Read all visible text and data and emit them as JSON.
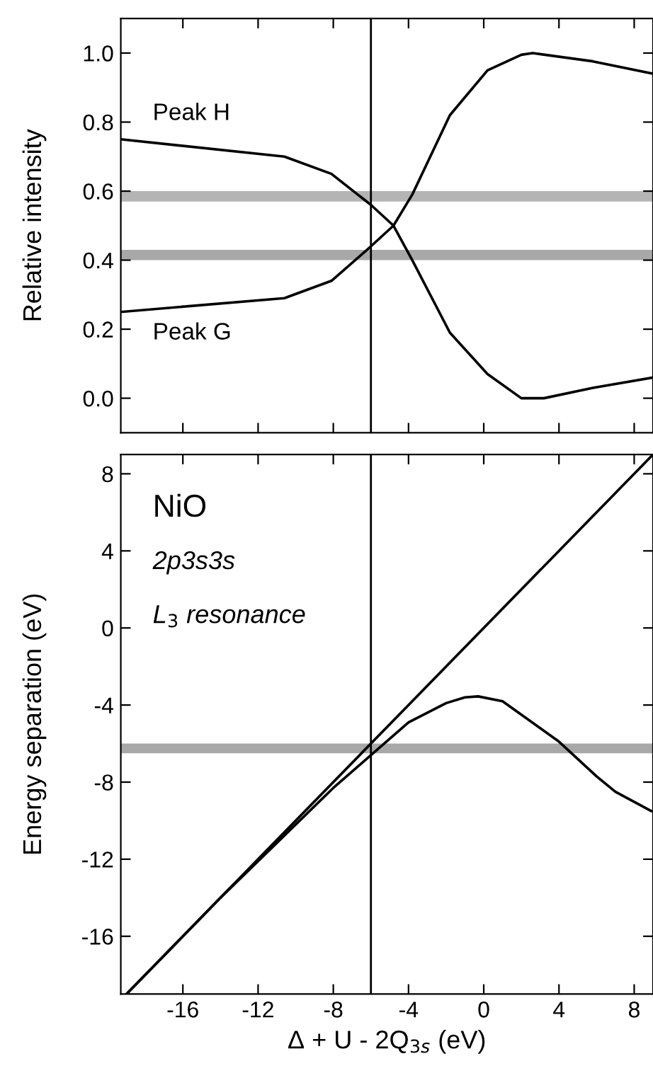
{
  "chart_data": [
    {
      "type": "line",
      "ylabel": "Relative intensity",
      "xlim": [
        -19.3,
        9.0
      ],
      "ylim": [
        -0.1,
        1.1
      ],
      "tick_labels": "y",
      "grid": false,
      "marker": "none",
      "line_style": "solid",
      "xticks": [
        {
          "value": -16,
          "label": null
        },
        {
          "value": -12,
          "label": null
        },
        {
          "value": -8,
          "label": null
        },
        {
          "value": -4,
          "label": null
        },
        {
          "value": 0,
          "label": null
        },
        {
          "value": 4,
          "label": null
        },
        {
          "value": 8,
          "label": null
        }
      ],
      "yticks": [
        {
          "value": 0.0,
          "label": "0.0"
        },
        {
          "value": 0.2,
          "label": "0.2"
        },
        {
          "value": 0.4,
          "label": "0.4"
        },
        {
          "value": 0.6,
          "label": "0.6"
        },
        {
          "value": 0.8,
          "label": "0.8"
        },
        {
          "value": 1.0,
          "label": "1.0"
        }
      ],
      "series": [
        {
          "color": "#000000",
          "x": [
            -19.3,
            -10.6,
            -8.1,
            -6,
            -4.8,
            -3.8,
            -1.8,
            0.2,
            2.0,
            3.2,
            5.8,
            9.0
          ],
          "values": [
            0.75,
            0.7,
            0.65,
            0.56,
            0.5,
            0.4,
            0.19,
            0.07,
            0.0,
            0.0,
            0.03,
            0.06
          ]
        },
        {
          "color": "#000000",
          "x": [
            -19.3,
            -10.6,
            -8.1,
            -6,
            -4.8,
            -3.8,
            -1.8,
            0.2,
            2.0,
            2.6,
            5.8,
            9.0
          ],
          "values": [
            0.25,
            0.29,
            0.34,
            0.44,
            0.5,
            0.59,
            0.82,
            0.95,
            0.995,
            1.0,
            0.976,
            0.94
          ]
        }
      ],
      "ref_lines": [
        {
          "axis": "x",
          "value": -6,
          "color": "#000000"
        }
      ],
      "bands": [
        {
          "axis": "y",
          "from": 0.57,
          "to": 0.6,
          "color": "#b4b4b4"
        },
        {
          "axis": "y",
          "from": 0.4,
          "to": 0.43,
          "color": "#a8a8a8"
        }
      ],
      "annotations": [
        "Peak H",
        "Peak G"
      ]
    },
    {
      "type": "line",
      "ylabel": "Energy separation (eV)",
      "xlabel": "Δ + U - 2Q$_{3s}$ (eV)",
      "xlim": [
        -19.3,
        9.0
      ],
      "ylim": [
        -19.0,
        9.0
      ],
      "grid": false,
      "marker": "none",
      "line_style": "solid",
      "xticks": [
        -16,
        -12,
        -8,
        -4,
        0,
        4,
        8
      ],
      "yticks": [
        -16,
        -12,
        -8,
        -4,
        0,
        4,
        8
      ],
      "series": [
        {
          "color": "#000000",
          "x": [
            -19.0,
            9.0
          ],
          "values": [
            -19.0,
            9.0
          ]
        },
        {
          "color": "#000000",
          "x": [
            -19.0,
            -14,
            -10,
            -8,
            -6,
            -4,
            -2,
            -1,
            -0.3,
            1,
            2,
            3,
            4,
            5,
            6,
            7,
            8.9
          ],
          "values": [
            -19.0,
            -14.0,
            -10.2,
            -8.3,
            -6.6,
            -4.9,
            -3.9,
            -3.6,
            -3.55,
            -3.8,
            -4.5,
            -5.2,
            -5.9,
            -6.8,
            -7.7,
            -8.5,
            -9.5
          ]
        }
      ],
      "ref_lines": [
        {
          "axis": "x",
          "value": -6,
          "color": "#000000"
        }
      ],
      "bands": [
        {
          "axis": "y",
          "from": -6.5,
          "to": -6.0,
          "color": "#a8a8a8"
        }
      ],
      "annotations": [
        "NiO",
        "2p3s3s",
        "L$_{3}$ resonance"
      ]
    }
  ]
}
